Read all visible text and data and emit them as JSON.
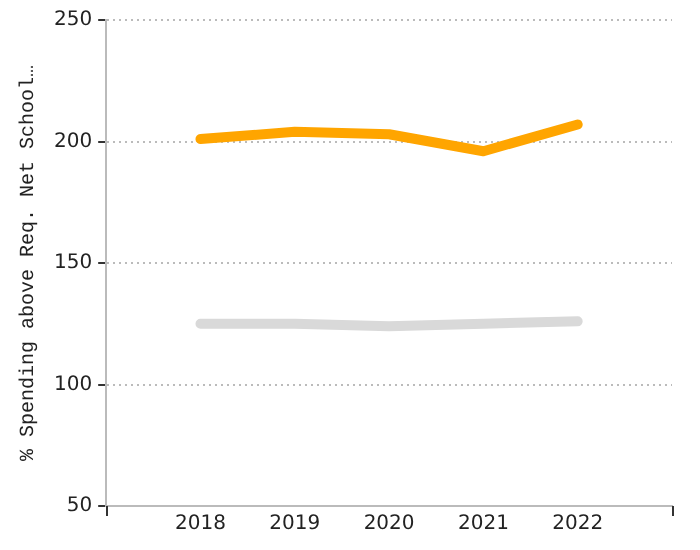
{
  "chart_data": {
    "type": "line",
    "ylabel": "% Spending above Req. Net School…",
    "x": [
      2018,
      2019,
      2020,
      2021,
      2022
    ],
    "series": [
      {
        "color": "#ffa500",
        "values": [
          201,
          204,
          203,
          196,
          207
        ]
      },
      {
        "color": "#d9d9d9",
        "values": [
          125,
          125,
          124,
          125,
          126
        ]
      }
    ],
    "xlim": [
      2017,
      2023
    ],
    "xticks": [
      {
        "value": 2017,
        "label": null
      },
      2018,
      2019,
      2020,
      2021,
      2022,
      {
        "value": 2023,
        "label": null
      }
    ],
    "ylim": [
      50,
      250
    ],
    "yticks": [
      50,
      100,
      150,
      200,
      250
    ],
    "grid": "y",
    "legend": false,
    "marker": "none",
    "line_style": "solid"
  }
}
